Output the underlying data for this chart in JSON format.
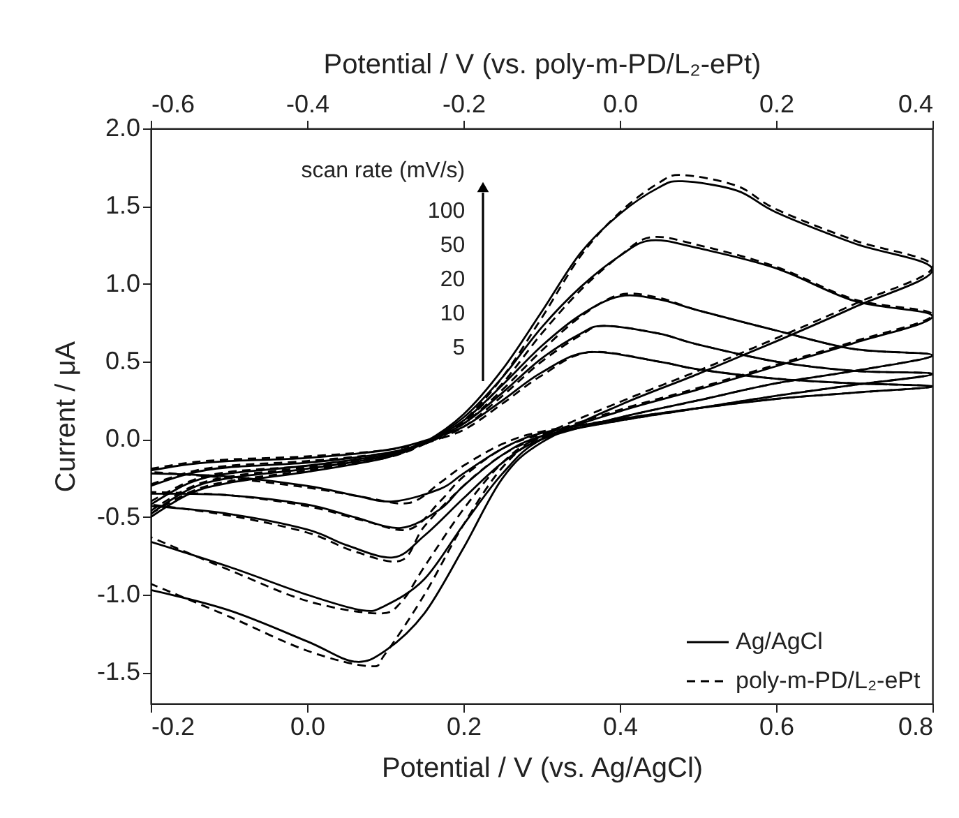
{
  "chart_data": {
    "type": "line",
    "xlabel": "Potential / V (vs. Ag/AgCl)",
    "ylabel": "Current / μA",
    "x2label": "Potential / V (vs. poly-m-PD/L₂-ePt)",
    "xlim": [
      -0.2,
      0.8
    ],
    "xticks": [
      {
        "value": -0.2,
        "label": "-0.2"
      },
      {
        "value": 0,
        "label": "0.0"
      },
      {
        "value": 0.2,
        "label": "0.2"
      },
      {
        "value": 0.4,
        "label": "0.4"
      },
      {
        "value": 0.6,
        "label": "0.6"
      },
      {
        "value": 0.8,
        "label": "0.8"
      }
    ],
    "x2lim": [
      -0.6,
      0.4
    ],
    "x2ticks": [
      {
        "value": -0.6,
        "label": "-0.6"
      },
      {
        "value": -0.4,
        "label": "-0.4"
      },
      {
        "value": -0.2,
        "label": "-0.2"
      },
      {
        "value": 0,
        "label": "0.0"
      },
      {
        "value": 0.2,
        "label": "0.2"
      },
      {
        "value": 0.4,
        "label": "0.4"
      }
    ],
    "ylim": [
      -1.7,
      2.0
    ],
    "yticks": [
      {
        "value": -1.5,
        "label": "-1.5"
      },
      {
        "value": -1,
        "label": "-1.0"
      },
      {
        "value": -0.5,
        "label": "-0.5"
      },
      {
        "value": 0,
        "label": "0.0"
      },
      {
        "value": 0.5,
        "label": "0.5"
      },
      {
        "value": 1,
        "label": "1.0"
      },
      {
        "value": 1.5,
        "label": "1.5"
      },
      {
        "value": 2,
        "label": "2.0"
      }
    ],
    "legend": "bottom right",
    "annotations": [
      "scan rate (mV/s)",
      "100",
      "50",
      "20",
      "10",
      "5"
    ],
    "series": [
      {
        "name": "Ag/AgCl",
        "color": "#000000",
        "line_style": "solid",
        "x": [
          -0.2,
          -0.15,
          -0.1,
          0.0,
          0.1,
          0.15,
          0.2,
          0.25,
          0.3,
          0.36,
          0.45,
          0.5,
          0.6,
          0.7,
          0.8,
          0.7,
          0.6,
          0.5,
          0.4,
          0.3,
          0.25,
          0.2,
          0.17,
          0.11,
          0.06,
          0.0,
          -0.1,
          -0.2
        ],
        "values": [
          -0.2,
          -0.16,
          -0.14,
          -0.12,
          -0.07,
          -0.01,
          0.08,
          0.25,
          0.43,
          0.56,
          0.5,
          0.45,
          0.39,
          0.36,
          0.34,
          0.3,
          0.26,
          0.2,
          0.13,
          0.04,
          -0.06,
          -0.22,
          -0.32,
          -0.4,
          -0.36,
          -0.3,
          -0.24,
          -0.22
        ]
      },
      {
        "color": "#000000",
        "line_style": "solid",
        "x": [
          -0.2,
          -0.15,
          -0.1,
          0.0,
          0.1,
          0.15,
          0.2,
          0.25,
          0.3,
          0.35,
          0.38,
          0.45,
          0.5,
          0.6,
          0.7,
          0.8,
          0.7,
          0.6,
          0.5,
          0.4,
          0.3,
          0.25,
          0.2,
          0.17,
          0.12,
          0.06,
          0.0,
          -0.1,
          -0.2
        ],
        "values": [
          -0.3,
          -0.22,
          -0.18,
          -0.15,
          -0.09,
          -0.02,
          0.1,
          0.3,
          0.52,
          0.68,
          0.73,
          0.68,
          0.61,
          0.5,
          0.44,
          0.42,
          0.35,
          0.28,
          0.2,
          0.12,
          0.02,
          -0.1,
          -0.3,
          -0.45,
          -0.57,
          -0.5,
          -0.42,
          -0.36,
          -0.35
        ]
      },
      {
        "color": "#000000",
        "line_style": "solid",
        "x": [
          -0.2,
          -0.15,
          -0.1,
          0.0,
          0.1,
          0.15,
          0.2,
          0.25,
          0.3,
          0.35,
          0.4,
          0.45,
          0.5,
          0.6,
          0.7,
          0.8,
          0.7,
          0.6,
          0.5,
          0.4,
          0.3,
          0.25,
          0.2,
          0.15,
          0.11,
          0.05,
          0.0,
          -0.1,
          -0.2
        ],
        "values": [
          -0.42,
          -0.28,
          -0.22,
          -0.17,
          -0.1,
          -0.02,
          0.12,
          0.35,
          0.6,
          0.8,
          0.92,
          0.9,
          0.83,
          0.7,
          0.58,
          0.54,
          0.44,
          0.36,
          0.25,
          0.14,
          0.0,
          -0.15,
          -0.38,
          -0.62,
          -0.76,
          -0.68,
          -0.58,
          -0.48,
          -0.43
        ]
      },
      {
        "color": "#000000",
        "line_style": "solid",
        "x": [
          -0.2,
          -0.15,
          -0.1,
          0.0,
          0.1,
          0.15,
          0.2,
          0.25,
          0.3,
          0.35,
          0.4,
          0.44,
          0.5,
          0.6,
          0.7,
          0.8,
          0.7,
          0.6,
          0.5,
          0.4,
          0.3,
          0.25,
          0.2,
          0.15,
          0.1,
          0.07,
          0.0,
          -0.1,
          -0.2
        ],
        "values": [
          -0.48,
          -0.32,
          -0.25,
          -0.19,
          -0.11,
          -0.02,
          0.14,
          0.4,
          0.72,
          0.98,
          1.18,
          1.28,
          1.23,
          1.1,
          0.89,
          0.79,
          0.62,
          0.47,
          0.32,
          0.18,
          0.0,
          -0.22,
          -0.55,
          -0.9,
          -1.07,
          -1.1,
          -1.0,
          -0.82,
          -0.66
        ]
      },
      {
        "color": "#000000",
        "line_style": "solid",
        "x": [
          -0.2,
          -0.15,
          -0.1,
          0.0,
          0.1,
          0.15,
          0.2,
          0.25,
          0.3,
          0.35,
          0.4,
          0.45,
          0.48,
          0.55,
          0.6,
          0.7,
          0.8,
          0.7,
          0.6,
          0.5,
          0.4,
          0.3,
          0.25,
          0.2,
          0.15,
          0.1,
          0.06,
          0.0,
          -0.1,
          -0.2
        ],
        "values": [
          -0.5,
          -0.35,
          -0.28,
          -0.21,
          -0.12,
          -0.02,
          0.16,
          0.45,
          0.82,
          1.2,
          1.45,
          1.62,
          1.66,
          1.6,
          1.46,
          1.26,
          1.09,
          0.85,
          0.63,
          0.42,
          0.22,
          -0.02,
          -0.25,
          -0.7,
          -1.12,
          -1.36,
          -1.43,
          -1.3,
          -1.1,
          -0.97
        ]
      },
      {
        "name": "poly-m-PD/L₂-ePt",
        "color": "#000000",
        "line_style": "dashed",
        "x": [
          -0.2,
          -0.15,
          -0.1,
          0.0,
          0.1,
          0.15,
          0.2,
          0.25,
          0.3,
          0.36,
          0.45,
          0.5,
          0.6,
          0.7,
          0.8,
          0.7,
          0.6,
          0.5,
          0.4,
          0.3,
          0.25,
          0.2,
          0.17,
          0.13,
          0.07,
          0.0,
          -0.1,
          -0.2
        ],
        "values": [
          -0.19,
          -0.15,
          -0.13,
          -0.11,
          -0.07,
          -0.02,
          0.06,
          0.23,
          0.41,
          0.56,
          0.5,
          0.45,
          0.39,
          0.36,
          0.34,
          0.3,
          0.26,
          0.2,
          0.13,
          0.05,
          -0.03,
          -0.17,
          -0.28,
          -0.41,
          -0.37,
          -0.31,
          -0.25,
          -0.21
        ]
      },
      {
        "color": "#000000",
        "line_style": "dashed",
        "x": [
          -0.2,
          -0.15,
          -0.1,
          0.0,
          0.1,
          0.15,
          0.2,
          0.25,
          0.3,
          0.35,
          0.38,
          0.45,
          0.5,
          0.6,
          0.7,
          0.8,
          0.7,
          0.6,
          0.5,
          0.4,
          0.3,
          0.25,
          0.2,
          0.17,
          0.13,
          0.07,
          0.0,
          -0.1,
          -0.2
        ],
        "values": [
          -0.29,
          -0.21,
          -0.17,
          -0.14,
          -0.09,
          -0.03,
          0.08,
          0.28,
          0.5,
          0.67,
          0.73,
          0.68,
          0.61,
          0.5,
          0.44,
          0.42,
          0.35,
          0.28,
          0.2,
          0.12,
          0.03,
          -0.06,
          -0.24,
          -0.4,
          -0.58,
          -0.52,
          -0.43,
          -0.36,
          -0.34
        ]
      },
      {
        "color": "#000000",
        "line_style": "dashed",
        "x": [
          -0.2,
          -0.15,
          -0.1,
          0.0,
          0.1,
          0.15,
          0.2,
          0.25,
          0.3,
          0.35,
          0.4,
          0.45,
          0.5,
          0.6,
          0.7,
          0.8,
          0.7,
          0.6,
          0.5,
          0.4,
          0.3,
          0.25,
          0.2,
          0.15,
          0.12,
          0.06,
          0.0,
          -0.1,
          -0.2
        ],
        "values": [
          -0.4,
          -0.27,
          -0.21,
          -0.17,
          -0.1,
          -0.03,
          0.1,
          0.32,
          0.57,
          0.79,
          0.93,
          0.91,
          0.83,
          0.7,
          0.58,
          0.54,
          0.44,
          0.36,
          0.25,
          0.14,
          0.01,
          -0.1,
          -0.3,
          -0.56,
          -0.78,
          -0.72,
          -0.6,
          -0.49,
          -0.42
        ]
      },
      {
        "color": "#000000",
        "line_style": "dashed",
        "x": [
          -0.2,
          -0.15,
          -0.1,
          0.0,
          0.1,
          0.15,
          0.2,
          0.25,
          0.3,
          0.35,
          0.4,
          0.44,
          0.5,
          0.6,
          0.7,
          0.8,
          0.7,
          0.6,
          0.5,
          0.4,
          0.3,
          0.25,
          0.2,
          0.15,
          0.12,
          0.09,
          0.0,
          -0.1,
          -0.2
        ],
        "values": [
          -0.46,
          -0.31,
          -0.24,
          -0.18,
          -0.11,
          -0.03,
          0.11,
          0.36,
          0.68,
          0.96,
          1.18,
          1.3,
          1.25,
          1.11,
          0.9,
          0.8,
          0.63,
          0.48,
          0.33,
          0.19,
          0.02,
          -0.15,
          -0.45,
          -0.82,
          -1.05,
          -1.12,
          -1.04,
          -0.84,
          -0.63
        ]
      },
      {
        "color": "#000000",
        "line_style": "dashed",
        "x": [
          -0.2,
          -0.15,
          -0.1,
          0.0,
          0.1,
          0.15,
          0.2,
          0.25,
          0.3,
          0.35,
          0.4,
          0.45,
          0.48,
          0.55,
          0.6,
          0.7,
          0.8,
          0.7,
          0.6,
          0.5,
          0.4,
          0.3,
          0.25,
          0.2,
          0.15,
          0.1,
          0.08,
          0.0,
          -0.1,
          -0.2
        ],
        "values": [
          -0.48,
          -0.34,
          -0.27,
          -0.2,
          -0.12,
          -0.03,
          0.12,
          0.4,
          0.78,
          1.18,
          1.46,
          1.65,
          1.7,
          1.63,
          1.48,
          1.28,
          1.11,
          0.87,
          0.65,
          0.44,
          0.24,
          0.02,
          -0.18,
          -0.55,
          -1.0,
          -1.38,
          -1.46,
          -1.36,
          -1.14,
          -0.93
        ]
      }
    ]
  }
}
